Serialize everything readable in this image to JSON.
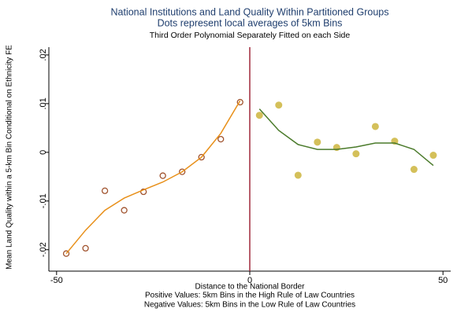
{
  "chart_data": {
    "type": "scatter",
    "title": "National Institutions and Land Quality Within Partitioned Groups",
    "subtitle": "Dots represent local averages of 5km Bins",
    "note_top": "Third Order Polynomial Separately Fitted on each Side",
    "x_label": "Distance to the National Border",
    "x_notes": [
      "Positive Values: 5km Bins in the High Rule of Law Countries",
      "Negative Values: 5km Bins in the Low Rule of Law Countries"
    ],
    "y_label": "Mean Land Quality within a 5-km Bin Conditional on Ethnicity FE",
    "xlim": [
      -52,
      52
    ],
    "ylim": [
      -0.0244,
      0.0216
    ],
    "xticks": [
      -50,
      0,
      50
    ],
    "yticks": [
      {
        "value": 0.02,
        "label": ".02"
      },
      {
        "value": 0.01,
        "label": ".01"
      },
      0,
      {
        "value": -0.01,
        "label": "-.01"
      },
      {
        "value": -0.02,
        "label": "-.02"
      }
    ],
    "vline": 0,
    "vline_color": "#a0283c",
    "series": [
      {
        "type": "scatter",
        "marker": "hollow",
        "color": "#a0522d",
        "x": [
          -47.5,
          -42.5,
          -37.5,
          -32.5,
          -27.5,
          -22.5,
          -17.5,
          -12.5,
          -7.5,
          -2.5
        ],
        "values": [
          -0.0208,
          -0.0197,
          -0.0079,
          -0.0119,
          -0.0081,
          -0.0048,
          -0.004,
          -0.001,
          0.0027,
          0.0103
        ]
      },
      {
        "type": "scatter",
        "marker": "filled",
        "color": "#d4c05a",
        "x": [
          2.5,
          7.5,
          12.5,
          17.5,
          22.5,
          27.5,
          32.5,
          37.5,
          42.5,
          47.5
        ],
        "values": [
          0.0076,
          0.0097,
          -0.0047,
          0.0021,
          0.001,
          -0.0003,
          0.0053,
          0.0023,
          -0.0035,
          -0.0006
        ]
      },
      {
        "type": "line",
        "color": "#e8901a",
        "x": [
          -47.5,
          -42.5,
          -37.5,
          -32.5,
          -27.5,
          -22.5,
          -17.5,
          -12.5,
          -7.5,
          -2.5
        ],
        "values": [
          -0.0208,
          -0.016,
          -0.0119,
          -0.0094,
          -0.0077,
          -0.0061,
          -0.004,
          -0.001,
          0.0039,
          0.0106
        ]
      },
      {
        "type": "line",
        "color": "#4a7a2a",
        "x": [
          2.5,
          7.5,
          12.5,
          17.5,
          22.5,
          27.5,
          32.5,
          37.5,
          42.5,
          47.5
        ],
        "values": [
          0.0089,
          0.0045,
          0.0016,
          0.0006,
          0.0006,
          0.0011,
          0.0019,
          0.0019,
          0.0006,
          -0.0027
        ]
      }
    ]
  }
}
